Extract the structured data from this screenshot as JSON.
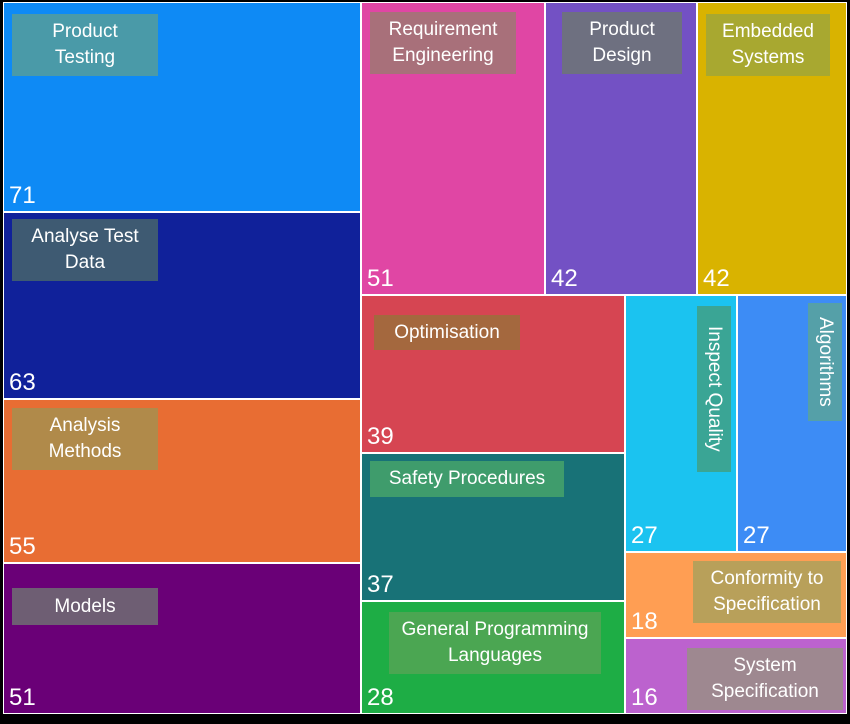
{
  "chart_data": {
    "type": "treemap",
    "items": [
      {
        "name": "Product Testing",
        "value": 71,
        "color": "#0E8AF5",
        "label_color": "#4A9AA8"
      },
      {
        "name": "Analyse Test Data",
        "value": 63,
        "color": "#10219A",
        "label_color": "#3E5A72"
      },
      {
        "name": "Analysis Methods",
        "value": 55,
        "color": "#E86D33",
        "label_color": "#B08A4A"
      },
      {
        "name": "Models",
        "value": 51,
        "color": "#6A0077",
        "label_color": "#6E5E73"
      },
      {
        "name": "Requirement Engineering",
        "value": 51,
        "color": "#E046A4",
        "label_color": "#A8707A"
      },
      {
        "name": "Product Design",
        "value": 42,
        "color": "#7351C4",
        "label_color": "#6E7080"
      },
      {
        "name": "Embedded Systems",
        "value": 42,
        "color": "#D9B300",
        "label_color": "#A8A830"
      },
      {
        "name": "Optimisation",
        "value": 39,
        "color": "#D64552",
        "label_color": "#A4683E"
      },
      {
        "name": "Safety Procedures",
        "value": 37,
        "color": "#187277",
        "label_color": "#3F9C6C"
      },
      {
        "name": "General Programming Languages",
        "value": 28,
        "color": "#1EAD45",
        "label_color": "#4BA652"
      },
      {
        "name": "Inspect Quality",
        "value": 27,
        "color": "#1BC3F0",
        "label_color": "#3AA595"
      },
      {
        "name": "Algorithms",
        "value": 27,
        "color": "#3D8CF5",
        "label_color": "#55A0A8"
      },
      {
        "name": "Conformity to Specification",
        "value": 18,
        "color": "#FF9E53",
        "label_color": "#B8A05A"
      },
      {
        "name": "System Specification",
        "value": 16,
        "color": "#BC62CE",
        "label_color": "#9E8890"
      }
    ]
  }
}
